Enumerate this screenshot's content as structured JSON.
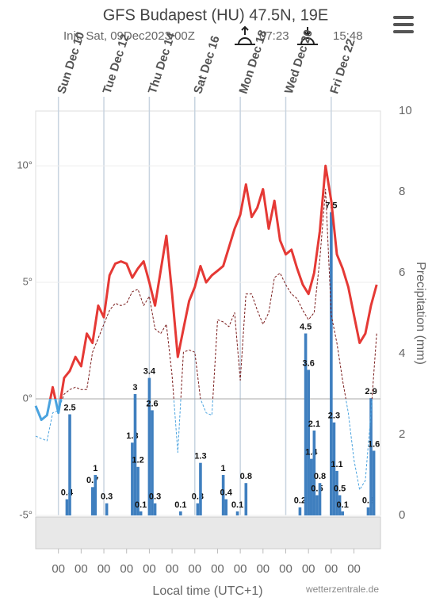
{
  "chart_data": {
    "type": "line",
    "title": "GFS Budapest (HU) 47.5N, 19E",
    "subtitle": "Init: Sat, 09Dec2023 00Z",
    "sunrise": "07:23",
    "sunset": "15:48",
    "x_label": "Local time (UTC+1)",
    "y2_label": "Precipitation (mm)",
    "credit": "wetterzentrale.de",
    "xlim": [
      0,
      364
    ],
    "xticks": [
      {
        "value": 24,
        "label": "00"
      },
      {
        "value": 48,
        "label": "00"
      },
      {
        "value": 72,
        "label": "00"
      },
      {
        "value": 96,
        "label": "00"
      },
      {
        "value": 120,
        "label": "00"
      },
      {
        "value": 144,
        "label": "00"
      },
      {
        "value": 168,
        "label": "00"
      },
      {
        "value": 192,
        "label": "00"
      },
      {
        "value": 216,
        "label": "00"
      },
      {
        "value": 240,
        "label": "00"
      },
      {
        "value": 264,
        "label": "00"
      },
      {
        "value": 288,
        "label": "00"
      },
      {
        "value": 312,
        "label": "00"
      },
      {
        "value": 336,
        "label": "00"
      }
    ],
    "date_labels": [
      {
        "value": 24,
        "label": "Sun Dec 10"
      },
      {
        "value": 72,
        "label": "Tue Dec 12"
      },
      {
        "value": 120,
        "label": "Thu Dec 14"
      },
      {
        "value": 168,
        "label": "Sat Dec 16"
      },
      {
        "value": 216,
        "label": "Mon Dec 18"
      },
      {
        "value": 264,
        "label": "Wed Dec 20"
      },
      {
        "value": 312,
        "label": "Fri Dec 22"
      }
    ],
    "ylim": [
      -5,
      12.35
    ],
    "yticks": [
      {
        "value": -5,
        "label": "-5°"
      },
      {
        "value": 0,
        "label": "0°"
      },
      {
        "value": 5,
        "label": "5°"
      },
      {
        "value": 10,
        "label": "10°"
      }
    ],
    "y2lim": [
      0,
      10
    ],
    "y2ticks": [
      0,
      2,
      4,
      6,
      8,
      10
    ],
    "x": [
      0,
      6,
      12,
      18,
      24,
      30,
      36,
      42,
      48,
      54,
      60,
      66,
      72,
      78,
      84,
      90,
      96,
      102,
      108,
      114,
      120,
      126,
      132,
      138,
      144,
      150,
      156,
      162,
      168,
      174,
      180,
      186,
      192,
      198,
      204,
      210,
      216,
      222,
      228,
      234,
      240,
      246,
      252,
      258,
      264,
      270,
      276,
      282,
      288,
      294,
      300,
      306,
      312,
      318,
      324,
      330,
      336,
      342,
      348,
      354,
      360
    ],
    "series": [
      {
        "color": "#e53935",
        "color_below_zero": "#4aa3df",
        "values": [
          -0.3,
          -0.9,
          -0.7,
          0.5,
          -0.6,
          0.9,
          1.2,
          1.8,
          1.4,
          2.8,
          2.4,
          4.0,
          3.5,
          5.3,
          5.8,
          5.9,
          5.8,
          5.2,
          5.6,
          5.9,
          5.0,
          4.0,
          5.5,
          7.0,
          4.5,
          1.8,
          3.0,
          4.2,
          4.8,
          5.7,
          5.0,
          5.3,
          5.5,
          5.7,
          6.5,
          7.3,
          7.9,
          9.2,
          7.8,
          8.2,
          9.0,
          7.3,
          8.5,
          6.8,
          6.2,
          6.4,
          5.6,
          4.9,
          4.5,
          5.4,
          7.2,
          10.0,
          8.5,
          6.2,
          5.6,
          4.8,
          3.6,
          2.4,
          2.8,
          4.0,
          4.9
        ]
      },
      {
        "color": "#7a1c1c",
        "dashed": true,
        "color_below_zero": "#4aa3df",
        "values": [
          -1.6,
          -1.7,
          -1.8,
          -0.6,
          -0.5,
          0.2,
          0.4,
          0.5,
          0.4,
          0.4,
          2.0,
          2.6,
          3.2,
          3.8,
          4.1,
          4.0,
          4.1,
          4.6,
          4.7,
          4.0,
          4.4,
          3.0,
          2.8,
          3.2,
          1.0,
          -2.3,
          2.0,
          2.1,
          2.0,
          0.0,
          -0.6,
          -0.7,
          3.4,
          3.3,
          3.1,
          3.7,
          0.8,
          4.5,
          4.5,
          3.8,
          3.2,
          3.7,
          5.2,
          5.4,
          4.9,
          4.5,
          4.3,
          3.8,
          3.4,
          3.7,
          6.0,
          9.0,
          3.6,
          2.4,
          0.8,
          -0.6,
          -2.6,
          -3.9,
          -3.5,
          -0.6,
          2.8
        ]
      }
    ],
    "precipitation": {
      "axis": "y2",
      "color": "#3f7fbf",
      "x": [
        33,
        36,
        60,
        63,
        75,
        102,
        105,
        108,
        111,
        120,
        123,
        126,
        153,
        171,
        174,
        198,
        201,
        213,
        222,
        279,
        285,
        288,
        291,
        294,
        297,
        300,
        312,
        315,
        318,
        321,
        324,
        351,
        354,
        357
      ],
      "values": [
        0.4,
        2.5,
        0.7,
        1.0,
        0.3,
        1.8,
        3.0,
        1.2,
        0.1,
        3.4,
        2.6,
        0.3,
        0.1,
        0.3,
        1.3,
        1.0,
        0.4,
        0.1,
        0.8,
        0.2,
        4.5,
        3.6,
        1.4,
        2.1,
        0.5,
        0.8,
        7.5,
        2.3,
        1.1,
        0.5,
        0.1,
        0.2,
        2.9,
        1.6
      ]
    }
  }
}
